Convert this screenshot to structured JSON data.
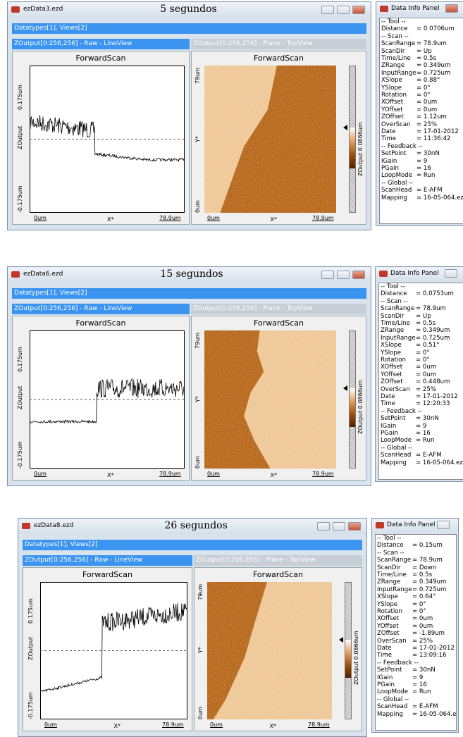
{
  "panels": [
    {
      "window_title": "ezData3.ezd",
      "caption": "5 segundos",
      "datatypes": "Datatypes[1], Views[2]",
      "line_view": {
        "title": "ZOutput[0:256,256] - Raw - LineView",
        "plot_title": "ForwardScan",
        "y_label": "ZOutput",
        "y_top": "0.175um",
        "y_bottom": "-0.175um",
        "x_left": "0um",
        "x_mid": "X*",
        "x_right": "78.9um"
      },
      "top_view": {
        "title": "ZOutput[0:256,256] - Plane - TopView",
        "plot_title": "ForwardScan",
        "y_label": "Y*",
        "y_top": "79um",
        "y_bottom": "0um",
        "x_left": "0um",
        "x_mid": "X*",
        "x_right": "78.9um",
        "colorbar_label": "ZOutput 0.0866um"
      },
      "info": {
        "title": "Data Info Panel",
        "rows": [
          [
            "-- Tool --"
          ],
          [
            "Distance",
            "= 0.0706um"
          ],
          [
            "-- Scan --"
          ],
          [
            "ScanRange",
            "= 78.9um"
          ],
          [
            "ScanDir",
            "= Up"
          ],
          [
            "Time/Line",
            "= 0.5s"
          ],
          [
            "ZRange",
            "= 0.349um"
          ],
          [
            "InputRange",
            "= 0.725um"
          ],
          [
            "XSlope",
            "= 0.88°"
          ],
          [
            "YSlope",
            "= 0°"
          ],
          [
            "Rotation",
            "= 0°"
          ],
          [
            "XOffset",
            "= 0um"
          ],
          [
            "YOffset",
            "= 0um"
          ],
          [
            "ZOffset",
            "= 1.12um"
          ],
          [
            "OverScan",
            "= 25%"
          ],
          [
            "Date",
            "= 17-01-2012"
          ],
          [
            "Time",
            "= 11:36:42"
          ],
          [
            "-- Feedback --"
          ],
          [
            "SetPoint",
            "= 30nN"
          ],
          [
            "IGain",
            "= 9"
          ],
          [
            "PGain",
            "= 16"
          ],
          [
            "LoopMode",
            "= Run"
          ],
          [
            "-- Global --"
          ],
          [
            "ScanHead",
            "= E-AFM"
          ],
          [
            "Mapping",
            "= 16-05-064.ez"
          ]
        ]
      }
    },
    {
      "window_title": "ezData6.ezd",
      "caption": "15 segundos",
      "datatypes": "Datatypes[1], Views[2]",
      "line_view": {
        "title": "ZOutput[0:256,256] - Raw - LineView",
        "plot_title": "ForwardScan",
        "y_label": "ZOutput",
        "y_top": "0.175um",
        "y_bottom": "-0.175um",
        "x_left": "0um",
        "x_mid": "X*",
        "x_right": "78.9um"
      },
      "top_view": {
        "title": "ZOutput[0:256,256] - Plane - TopView",
        "plot_title": "ForwardScan",
        "y_label": "Y*",
        "y_top": "79um",
        "y_bottom": "0um",
        "x_left": "0um",
        "x_mid": "X*",
        "x_right": "78.9um",
        "colorbar_label": "ZOutput 0.0866um"
      },
      "info": {
        "title": "Data Info Panel",
        "rows": [
          [
            "-- Tool --"
          ],
          [
            "Distance",
            "= 0.0753um"
          ],
          [
            "-- Scan --"
          ],
          [
            "ScanRange",
            "= 78.9um"
          ],
          [
            "ScanDir",
            "= Up"
          ],
          [
            "Time/Line",
            "= 0.5s"
          ],
          [
            "ZRange",
            "= 0.349um"
          ],
          [
            "InputRange",
            "= 0.725um"
          ],
          [
            "XSlope",
            "= 0.51°"
          ],
          [
            "YSlope",
            "= 0°"
          ],
          [
            "Rotation",
            "= 0°"
          ],
          [
            "XOffset",
            "= 0um"
          ],
          [
            "YOffset",
            "= 0um"
          ],
          [
            "ZOffset",
            "= 0.448um"
          ],
          [
            "OverScan",
            "= 25%"
          ],
          [
            "Date",
            "= 17-01-2012"
          ],
          [
            "Time",
            "= 12:20:33"
          ],
          [
            "-- Feedback --"
          ],
          [
            "SetPoint",
            "= 30nN"
          ],
          [
            "IGain",
            "= 9"
          ],
          [
            "PGain",
            "= 16"
          ],
          [
            "LoopMode",
            "= Run"
          ],
          [
            "-- Global --"
          ],
          [
            "ScanHead",
            "= E-AFM"
          ],
          [
            "Mapping",
            "= 16-05-064.ez"
          ]
        ]
      }
    },
    {
      "window_title": "ezData8.ezd",
      "caption": "26 segundos",
      "datatypes": "Datatypes[1], Views[2]",
      "line_view": {
        "title": "ZOutput[0:256,256] - Raw - LineView",
        "plot_title": "ForwardScan",
        "y_label": "ZOutput",
        "y_top": "0.175um",
        "y_bottom": "-0.175um",
        "x_left": "0um",
        "x_mid": "X*",
        "x_right": "78.9um"
      },
      "top_view": {
        "title": "ZOutput[0:256,256] - Plane - TopView",
        "plot_title": "ForwardScan",
        "y_label": "Y*",
        "y_top": "79um",
        "y_bottom": "0um",
        "x_left": "0um",
        "x_mid": "X*",
        "x_right": "78.9um",
        "colorbar_label": "ZOutput 0.0866um"
      },
      "info": {
        "title": "Data Info Panel",
        "rows": [
          [
            "-- Tool --"
          ],
          [
            "Distance",
            "= 0.15um"
          ],
          [
            "-- Scan --"
          ],
          [
            "ScanRange",
            "= 78.9um"
          ],
          [
            "ScanDir",
            "= Down"
          ],
          [
            "Time/Line",
            "= 0.5s"
          ],
          [
            "ZRange",
            "= 0.349um"
          ],
          [
            "InputRange",
            "= 0.725um"
          ],
          [
            "XSlope",
            "= 0.64°"
          ],
          [
            "YSlope",
            "= 0°"
          ],
          [
            "Rotation",
            "= 0°"
          ],
          [
            "XOffset",
            "= 0um"
          ],
          [
            "YOffset",
            "= 0um"
          ],
          [
            "ZOffset",
            "= -1.89um"
          ],
          [
            "OverScan",
            "= 25%"
          ],
          [
            "Date",
            "= 17-01-2012"
          ],
          [
            "Time",
            "= 13:09:16"
          ],
          [
            "-- Feedback --"
          ],
          [
            "SetPoint",
            "= 30nN"
          ],
          [
            "IGain",
            "= 9"
          ],
          [
            "PGain",
            "= 16"
          ],
          [
            "LoopMode",
            "= Run"
          ],
          [
            "-- Global --"
          ],
          [
            "ScanHead",
            "= E-AFM"
          ],
          [
            "Mapping",
            "= 16-05-064.ez"
          ]
        ]
      }
    }
  ]
}
